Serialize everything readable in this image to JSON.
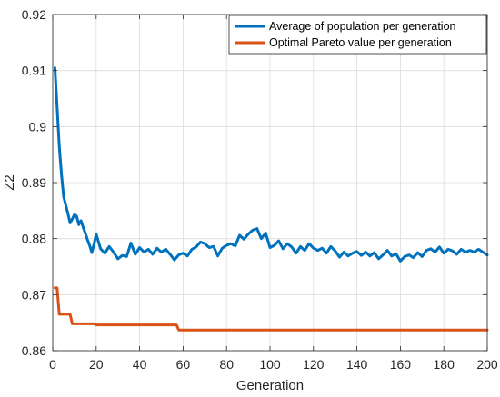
{
  "chart_data": {
    "type": "line",
    "title": "",
    "xlabel": "Generation",
    "ylabel": "Z2",
    "xlim": [
      0,
      200
    ],
    "ylim": [
      0.86,
      0.92
    ],
    "xticks": [
      0,
      20,
      40,
      60,
      80,
      100,
      120,
      140,
      160,
      180,
      200
    ],
    "yticks": [
      0.86,
      0.87,
      0.88,
      0.89,
      0.9,
      0.91,
      0.92
    ],
    "ytick_labels": [
      "0.86",
      "0.87",
      "0.88",
      "0.89",
      "0.9",
      "0.91",
      "0.92"
    ],
    "grid": true,
    "legend_position": "top-right",
    "series": [
      {
        "name": "Average of population per generation",
        "color": "#0072BD",
        "x": [
          1,
          2,
          3,
          4,
          5,
          6,
          7,
          8,
          9,
          10,
          11,
          12,
          13,
          14,
          15,
          16,
          17,
          18,
          19,
          20,
          22,
          24,
          26,
          28,
          30,
          32,
          34,
          36,
          38,
          40,
          42,
          44,
          46,
          48,
          50,
          52,
          54,
          56,
          58,
          60,
          62,
          64,
          66,
          68,
          70,
          72,
          74,
          76,
          78,
          80,
          82,
          84,
          86,
          88,
          90,
          92,
          94,
          96,
          98,
          100,
          102,
          104,
          106,
          108,
          110,
          112,
          114,
          116,
          118,
          120,
          122,
          124,
          126,
          128,
          130,
          132,
          134,
          136,
          138,
          140,
          142,
          144,
          146,
          148,
          150,
          152,
          154,
          156,
          158,
          160,
          162,
          164,
          166,
          168,
          170,
          172,
          174,
          176,
          178,
          180,
          182,
          184,
          186,
          188,
          190,
          192,
          194,
          196,
          198,
          200
        ],
        "values": [
          0.9105,
          0.9035,
          0.8965,
          0.8915,
          0.8875,
          0.886,
          0.8845,
          0.8828,
          0.8835,
          0.8843,
          0.884,
          0.8825,
          0.8832,
          0.882,
          0.881,
          0.8798,
          0.8788,
          0.8775,
          0.879,
          0.8808,
          0.8782,
          0.8774,
          0.8786,
          0.8776,
          0.8764,
          0.877,
          0.8768,
          0.8792,
          0.8772,
          0.8784,
          0.8776,
          0.8781,
          0.8772,
          0.8783,
          0.8776,
          0.8781,
          0.8772,
          0.8762,
          0.8771,
          0.8774,
          0.8769,
          0.8781,
          0.8785,
          0.8794,
          0.8791,
          0.8784,
          0.8786,
          0.8769,
          0.8783,
          0.8788,
          0.8791,
          0.8787,
          0.8806,
          0.8799,
          0.8808,
          0.8815,
          0.8818,
          0.88,
          0.881,
          0.8784,
          0.8788,
          0.8796,
          0.8782,
          0.8791,
          0.8785,
          0.8774,
          0.8786,
          0.8779,
          0.8791,
          0.8783,
          0.8779,
          0.8783,
          0.8774,
          0.8786,
          0.8778,
          0.8767,
          0.8776,
          0.8769,
          0.8774,
          0.8777,
          0.877,
          0.8776,
          0.8769,
          0.8775,
          0.8764,
          0.8771,
          0.8779,
          0.8769,
          0.8773,
          0.876,
          0.8768,
          0.8771,
          0.8766,
          0.8775,
          0.8768,
          0.8779,
          0.8782,
          0.8776,
          0.8785,
          0.8774,
          0.8781,
          0.8778,
          0.8772,
          0.8781,
          0.8776,
          0.8779,
          0.8776,
          0.8781,
          0.8776,
          0.8771
        ]
      },
      {
        "name": "Optimal Pareto value per generation",
        "color": "#D95319",
        "x": [
          1,
          2,
          3,
          4,
          5,
          6,
          7,
          8,
          9,
          10,
          11,
          12,
          13,
          14,
          15,
          16,
          17,
          18,
          19,
          20,
          30,
          40,
          50,
          56,
          57,
          58,
          70,
          100,
          150,
          200
        ],
        "values": [
          0.8712,
          0.8712,
          0.8665,
          0.8665,
          0.8665,
          0.8665,
          0.8665,
          0.8665,
          0.8648,
          0.8648,
          0.8648,
          0.8648,
          0.8648,
          0.8648,
          0.8648,
          0.8648,
          0.8648,
          0.8648,
          0.8648,
          0.8646,
          0.8646,
          0.8646,
          0.8646,
          0.8646,
          0.8646,
          0.8637,
          0.8637,
          0.8637,
          0.8637,
          0.8637
        ]
      }
    ]
  }
}
